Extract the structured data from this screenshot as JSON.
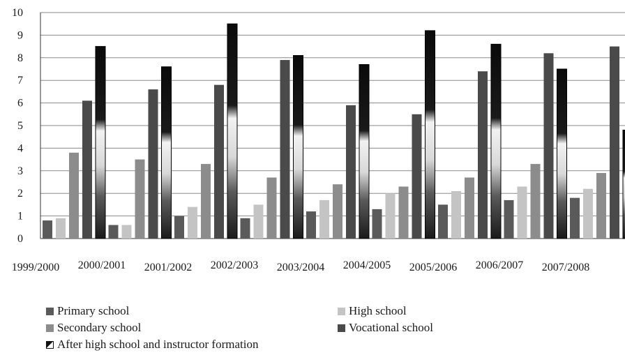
{
  "chart_data": {
    "type": "bar",
    "title": "",
    "xlabel": "",
    "ylabel": "",
    "ylim": [
      0,
      10
    ],
    "yticks": [
      0,
      1,
      2,
      3,
      4,
      5,
      6,
      7,
      8,
      9,
      10
    ],
    "grid": true,
    "legend_position": "bottom",
    "categories": [
      "1999/2000",
      "2000/2001",
      "2001/2002",
      "2002/2003",
      "2003/2004",
      "2004/2005",
      "2005/2006",
      "2006/2007",
      "2007/2008"
    ],
    "series": [
      {
        "name": "Primary school",
        "color": "#5a5a5a",
        "values": [
          0.8,
          0.6,
          1.0,
          0.9,
          1.2,
          1.3,
          1.5,
          1.7,
          1.8
        ]
      },
      {
        "name": "High school",
        "color": "#c4c4c4",
        "values": [
          0.9,
          0.6,
          1.4,
          1.5,
          1.7,
          2.0,
          2.1,
          2.3,
          2.2
        ]
      },
      {
        "name": "Secondary school",
        "color": "#8c8c8c",
        "values": [
          3.8,
          3.5,
          3.3,
          2.7,
          2.4,
          2.3,
          2.7,
          3.3,
          2.9
        ]
      },
      {
        "name": "Vocational school",
        "color": "#4a4a4a",
        "values": [
          6.1,
          6.6,
          6.8,
          7.9,
          5.9,
          5.5,
          7.4,
          8.2,
          8.5
        ]
      },
      {
        "name": "After high school and instructor formation",
        "color": "gradient-black-white",
        "values": [
          8.5,
          7.6,
          9.5,
          8.1,
          7.7,
          9.2,
          8.6,
          7.5,
          4.8
        ]
      }
    ]
  }
}
